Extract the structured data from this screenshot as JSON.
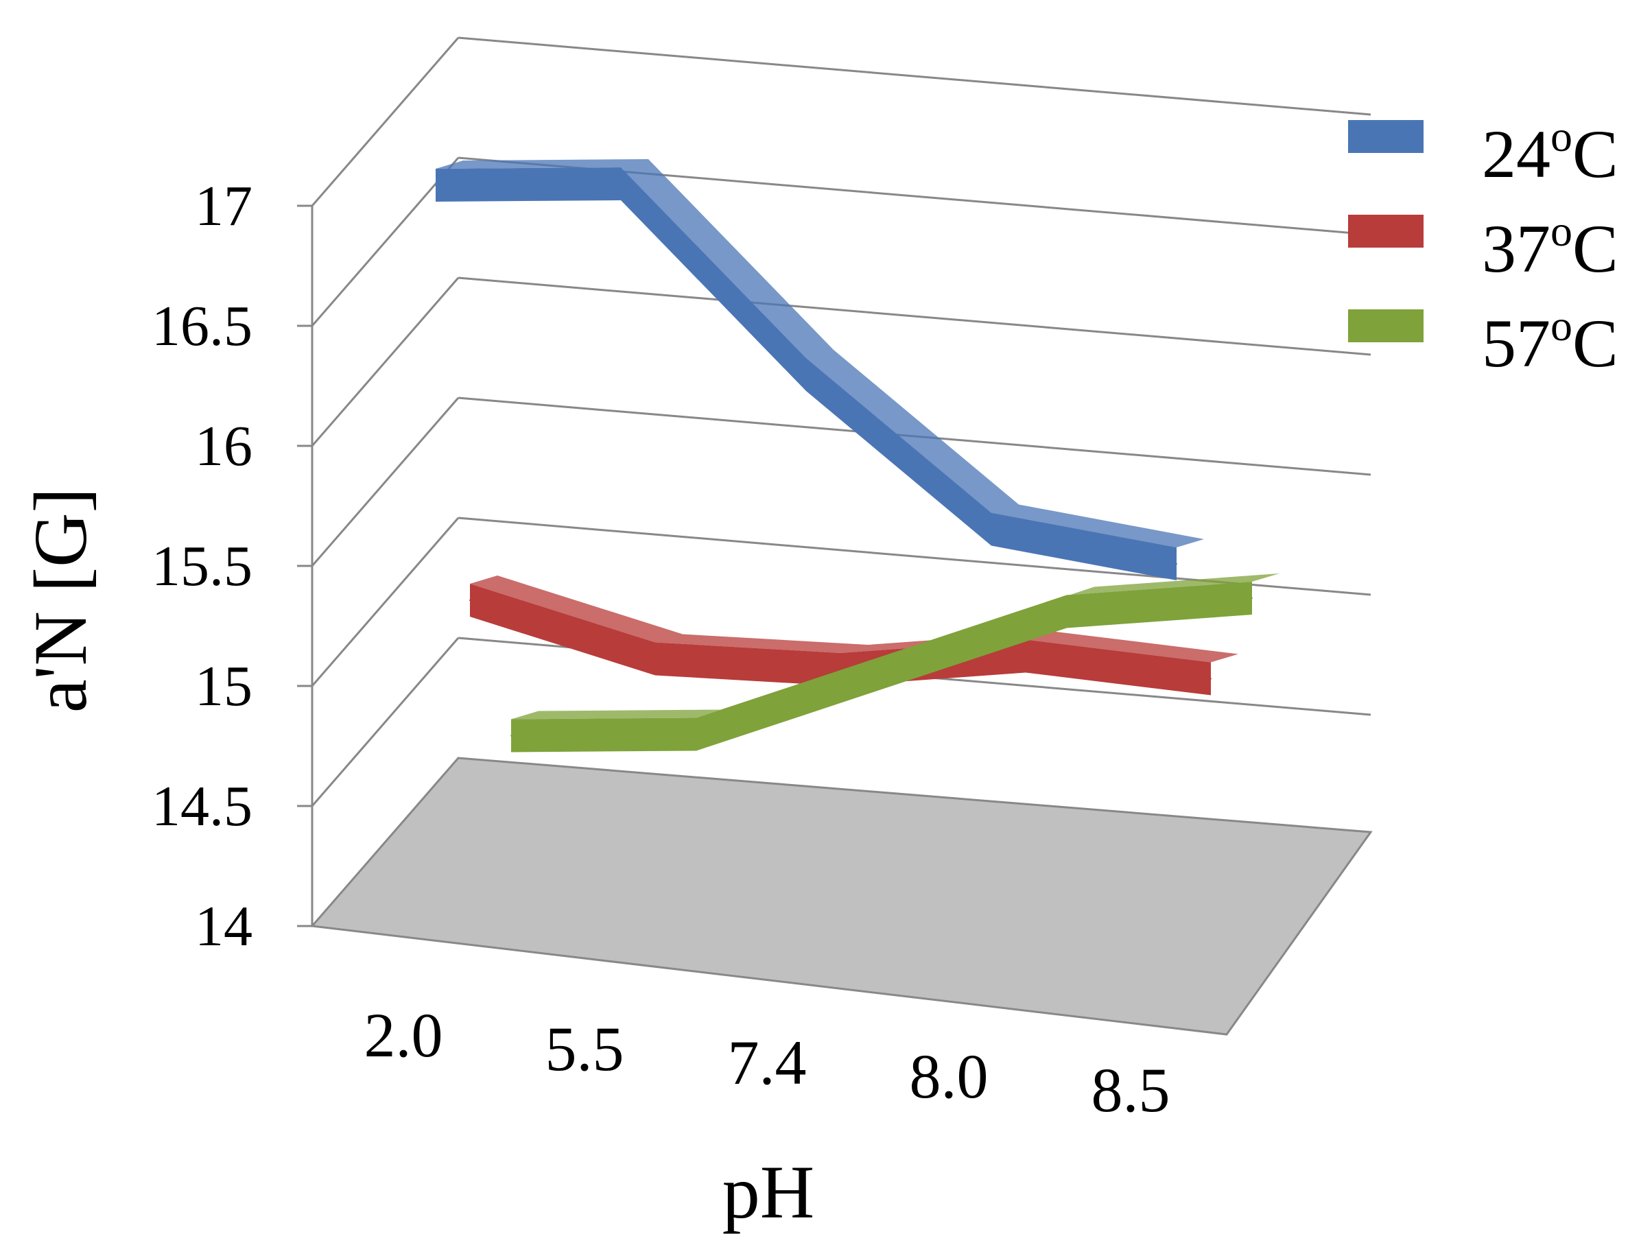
{
  "chart_data": {
    "type": "line",
    "style": "3d",
    "xlabel": "pH",
    "ylabel": "a'N [G]",
    "categories": [
      "2.0",
      "5.5",
      "7.4",
      "8.0",
      "8.5"
    ],
    "yticks": [
      "14",
      "14.5",
      "15",
      "15.5",
      "16",
      "16.5",
      "17"
    ],
    "ylim": [
      14,
      17
    ],
    "legend_position": "top-right",
    "series": [
      {
        "name": "24",
        "unit": "oC",
        "color": "#4a75b5",
        "values": [
          17.0,
          17.0,
          16.2,
          15.55,
          15.4
        ]
      },
      {
        "name": "37",
        "unit": "oC",
        "color": "#b83c3a",
        "values": [
          15.3,
          15.05,
          15.0,
          15.05,
          14.95
        ]
      },
      {
        "name": "57",
        "unit": "oC",
        "color": "#7fa23a",
        "values": [
          14.75,
          14.75,
          15.0,
          15.25,
          15.3
        ]
      }
    ],
    "colors": {
      "grid": "#888888",
      "floor": "#c0c0c0"
    }
  }
}
